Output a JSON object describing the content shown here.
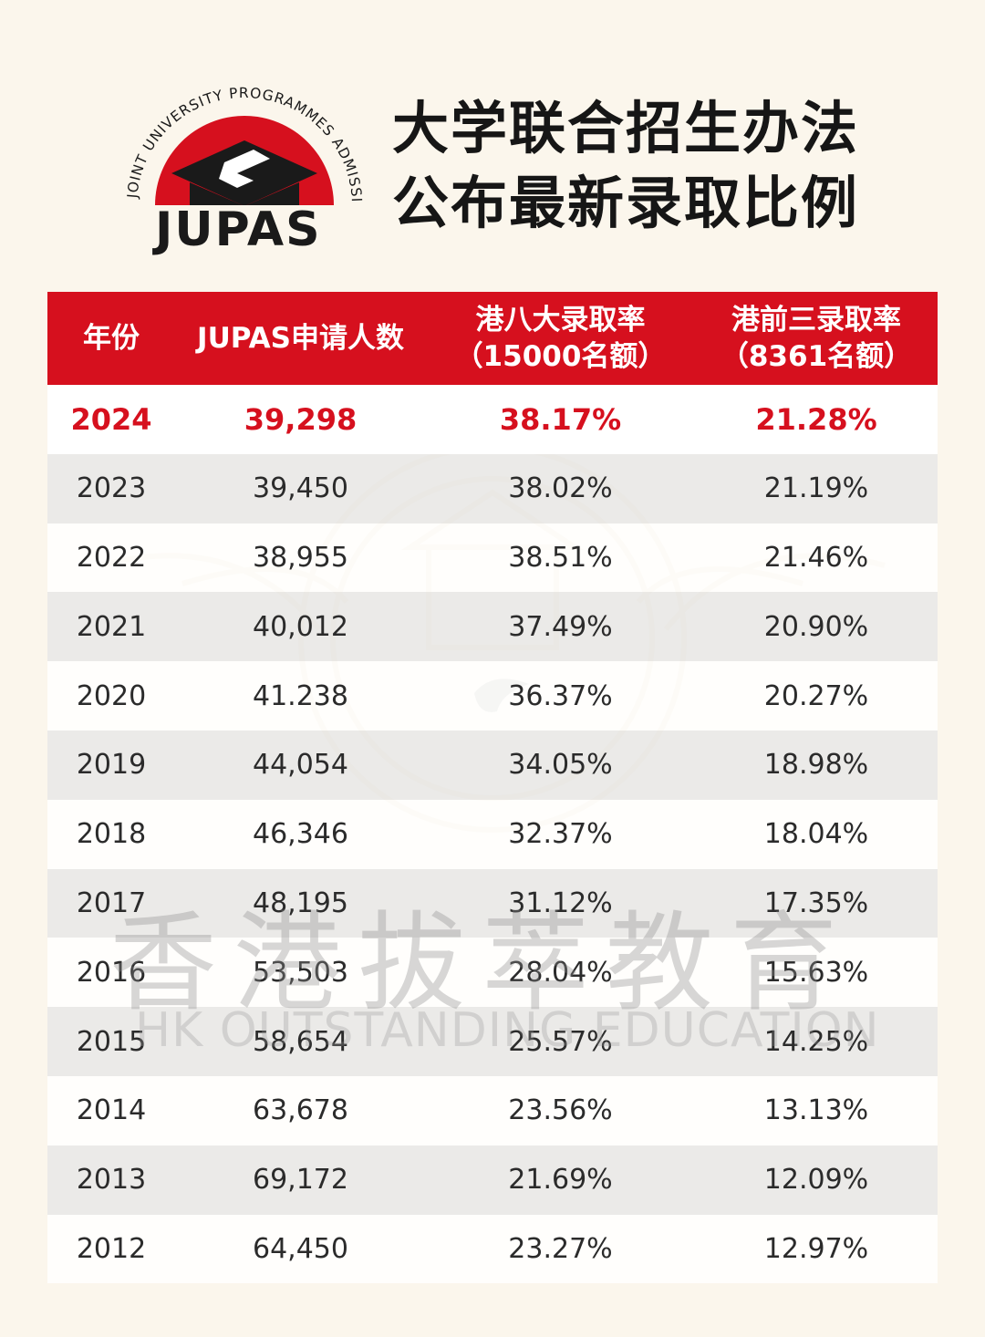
{
  "logo": {
    "arc_text": "JOINT UNIVERSITY PROGRAMMES ADMISSIONS SYSTEM",
    "wordmark": "JUPAS"
  },
  "title": {
    "line1": "大学联合招生办法",
    "line2": "公布最新录取比例"
  },
  "watermark": {
    "chinese": "香港拔萃教育",
    "english": "HK OUTSTANDING EDUCATION",
    "seal_text": "HK OUTSTANDING EDUCATION"
  },
  "table": {
    "headers": {
      "year": "年份",
      "applicants": "JUPAS申请人数",
      "top8_line1": "港八大录取率",
      "top8_line2": "（15000名额）",
      "top3_line1": "港前三录取率",
      "top3_line2": "（8361名额）"
    },
    "rows": [
      {
        "year": "2024",
        "applicants": "39,298",
        "top8": "38.17%",
        "top3": "21.28%"
      },
      {
        "year": "2023",
        "applicants": "39,450",
        "top8": "38.02%",
        "top3": "21.19%"
      },
      {
        "year": "2022",
        "applicants": "38,955",
        "top8": "38.51%",
        "top3": "21.46%"
      },
      {
        "year": "2021",
        "applicants": "40,012",
        "top8": "37.49%",
        "top3": "20.90%"
      },
      {
        "year": "2020",
        "applicants": "41.238",
        "top8": "36.37%",
        "top3": "20.27%"
      },
      {
        "year": "2019",
        "applicants": "44,054",
        "top8": "34.05%",
        "top3": "18.98%"
      },
      {
        "year": "2018",
        "applicants": "46,346",
        "top8": "32.37%",
        "top3": "18.04%"
      },
      {
        "year": "2017",
        "applicants": "48,195",
        "top8": "31.12%",
        "top3": "17.35%"
      },
      {
        "year": "2016",
        "applicants": "53,503",
        "top8": "28.04%",
        "top3": "15.63%"
      },
      {
        "year": "2015",
        "applicants": "58,654",
        "top8": "25.57%",
        "top3": "14.25%"
      },
      {
        "year": "2014",
        "applicants": "63,678",
        "top8": "23.56%",
        "top3": "13.13%"
      },
      {
        "year": "2013",
        "applicants": "69,172",
        "top8": "21.69%",
        "top3": "12.09%"
      },
      {
        "year": "2012",
        "applicants": "64,450",
        "top8": "23.27%",
        "top3": "12.97%"
      }
    ]
  },
  "colors": {
    "accent": "#d6101e",
    "background": "#fbf6ec",
    "stripe": "#e8e8e8",
    "text": "#2b2b2b"
  }
}
